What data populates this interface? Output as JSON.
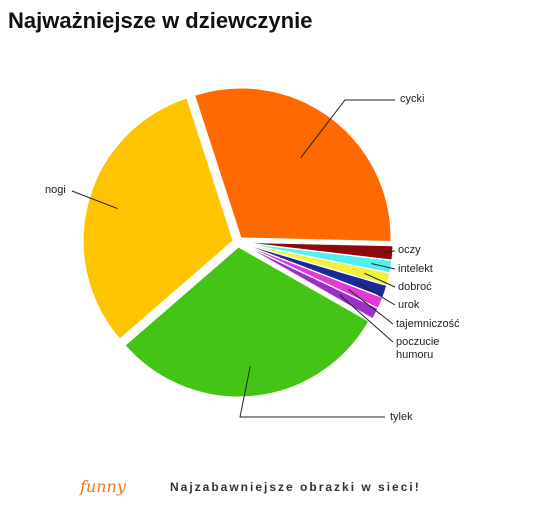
{
  "chart_data": {
    "type": "pie",
    "title": "Najważniejsze w dziewczynie",
    "categories": [
      "cycki",
      "oczy",
      "intelekt",
      "dobroć",
      "urok",
      "tajemniczość",
      "poczucie humoru",
      "tylek",
      "nogi"
    ],
    "values": [
      30,
      1.5,
      1.3,
      1.3,
      1.3,
      1.2,
      1.2,
      30,
      31
    ],
    "colors": [
      "#ff6a00",
      "#8b0a0a",
      "#4ff0f0",
      "#f2f23c",
      "#1a2a9c",
      "#e23ad8",
      "#9a30cc",
      "#44c414",
      "#ffc400"
    ]
  },
  "footer": {
    "logo": "funny",
    "tagline": "Najzabawniejsze obrazki w sieci!"
  }
}
